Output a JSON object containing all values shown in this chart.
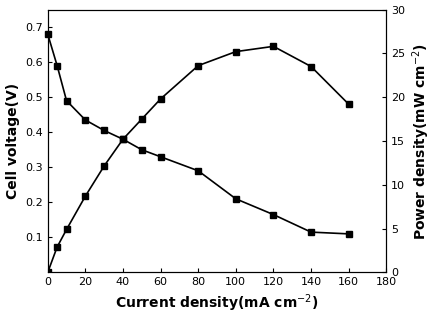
{
  "voltage_x": [
    0,
    5,
    10,
    20,
    30,
    40,
    50,
    60,
    80,
    100,
    120,
    140,
    160
  ],
  "voltage_y": [
    0.68,
    0.59,
    0.49,
    0.435,
    0.405,
    0.38,
    0.35,
    0.33,
    0.29,
    0.21,
    0.165,
    0.115,
    0.11
  ],
  "power_x": [
    0,
    5,
    10,
    20,
    30,
    40,
    50,
    60,
    80,
    100,
    120,
    140,
    160
  ],
  "power_y": [
    0.0,
    2.9,
    4.9,
    8.7,
    12.15,
    15.2,
    17.5,
    19.8,
    23.6,
    25.2,
    25.8,
    23.5,
    19.2
  ],
  "xlabel": "Current density(mA cm$^{-2}$)",
  "ylabel_left": "Cell voltage(V)",
  "ylabel_right": "Power density(mW cm$^{-2}$)",
  "xlim": [
    0,
    180
  ],
  "ylim_left": [
    0,
    0.75
  ],
  "ylim_right": [
    0,
    30
  ],
  "xticks": [
    0,
    20,
    40,
    60,
    80,
    100,
    120,
    140,
    160,
    180
  ],
  "yticks_left": [
    0.1,
    0.2,
    0.3,
    0.4,
    0.5,
    0.6,
    0.7
  ],
  "yticks_right": [
    0,
    5,
    10,
    15,
    20,
    25,
    30
  ],
  "line_color": "#000000",
  "marker": "s",
  "marker_size": 4,
  "linewidth": 1.2,
  "background_color": "#ffffff",
  "label_fontsize": 10,
  "tick_fontsize": 8
}
